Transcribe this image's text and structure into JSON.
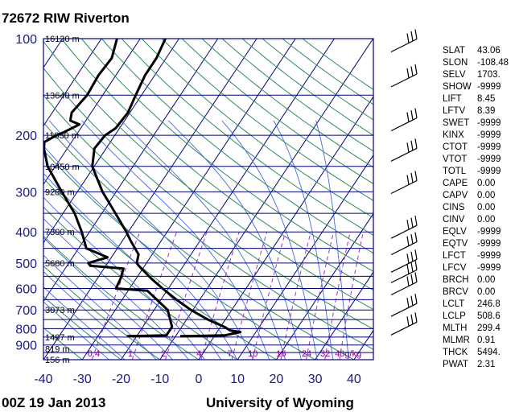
{
  "station": {
    "title": "72672 RIW Riverton"
  },
  "footer": {
    "time": "00Z 19 Jan 2013",
    "source": "University of Wyoming"
  },
  "chart_data": {
    "type": "skew-t",
    "y_scale": "log",
    "ylim": [
      1000,
      100
    ],
    "xlim": [
      -40,
      45
    ],
    "pressure_ticks": [
      100,
      200,
      300,
      400,
      500,
      600,
      700,
      800,
      900
    ],
    "temperature_ticks": [
      -40,
      -30,
      -20,
      -10,
      0,
      10,
      20,
      30,
      40
    ],
    "height_labels": [
      {
        "p": 100,
        "text": "16130 m"
      },
      {
        "p": 150,
        "text": "13640 m"
      },
      {
        "p": 200,
        "text": "11830 m"
      },
      {
        "p": 250,
        "text": "10450 m"
      },
      {
        "p": 300,
        "text": "9280 m"
      },
      {
        "p": 400,
        "text": "7300 m"
      },
      {
        "p": 500,
        "text": "5680 m"
      },
      {
        "p": 700,
        "text": "3073 m"
      },
      {
        "p": 850,
        "text": "1497 m"
      },
      {
        "p": 925,
        "text": "819 m"
      },
      {
        "p": 1000,
        "text": "156 m"
      }
    ],
    "mixing_ratio_labels": [
      "0.4",
      "1",
      "2",
      "4",
      "7",
      "10",
      "16",
      "24",
      "32",
      "40g/kg"
    ],
    "mixing_ratio_values": [
      0.4,
      1,
      2,
      4,
      7,
      10,
      16,
      24,
      32,
      40
    ],
    "temperature_profile": [
      {
        "p": 845,
        "t": -8.8
      },
      {
        "p": 840,
        "t": 2.5
      },
      {
        "p": 820,
        "t": 6.0
      },
      {
        "p": 810,
        "t": 3.0
      },
      {
        "p": 790,
        "t": 1.0
      },
      {
        "p": 750,
        "t": -4.5
      },
      {
        "p": 700,
        "t": -10.5
      },
      {
        "p": 650,
        "t": -16.0
      },
      {
        "p": 600,
        "t": -21.5
      },
      {
        "p": 560,
        "t": -26.0
      },
      {
        "p": 510,
        "t": -31.5
      },
      {
        "p": 500,
        "t": -32.5
      },
      {
        "p": 470,
        "t": -33.5
      },
      {
        "p": 430,
        "t": -37.5
      },
      {
        "p": 400,
        "t": -40.5
      },
      {
        "p": 350,
        "t": -46.5
      },
      {
        "p": 300,
        "t": -53.5
      },
      {
        "p": 250,
        "t": -60.5
      },
      {
        "p": 220,
        "t": -63.0
      },
      {
        "p": 200,
        "t": -62.5
      },
      {
        "p": 190,
        "t": -61.0
      },
      {
        "p": 170,
        "t": -60.5
      },
      {
        "p": 150,
        "t": -61.5
      },
      {
        "p": 130,
        "t": -62.5
      },
      {
        "p": 115,
        "t": -62.5
      },
      {
        "p": 100,
        "t": -63.5
      }
    ],
    "dewpoint_profile": [
      {
        "p": 845,
        "t": -22.5
      },
      {
        "p": 840,
        "t": -12.5
      },
      {
        "p": 790,
        "t": -12.5
      },
      {
        "p": 700,
        "t": -16.5
      },
      {
        "p": 610,
        "t": -25.0
      },
      {
        "p": 600,
        "t": -33.5
      },
      {
        "p": 560,
        "t": -34.0
      },
      {
        "p": 520,
        "t": -35.0
      },
      {
        "p": 510,
        "t": -44.0
      },
      {
        "p": 500,
        "t": -45.0
      },
      {
        "p": 480,
        "t": -41.0
      },
      {
        "p": 450,
        "t": -48.0
      },
      {
        "p": 400,
        "t": -52.0
      },
      {
        "p": 350,
        "t": -57.0
      },
      {
        "p": 300,
        "t": -64.0
      },
      {
        "p": 250,
        "t": -72.0
      },
      {
        "p": 220,
        "t": -76.0
      },
      {
        "p": 210,
        "t": -77.0
      },
      {
        "p": 200,
        "t": -75.0
      },
      {
        "p": 195,
        "t": -73.5
      },
      {
        "p": 185,
        "t": -71.0
      },
      {
        "p": 180,
        "t": -74.0
      },
      {
        "p": 170,
        "t": -75.0
      },
      {
        "p": 150,
        "t": -74.0
      },
      {
        "p": 130,
        "t": -74.5
      },
      {
        "p": 115,
        "t": -74.0
      },
      {
        "p": 100,
        "t": -76.0
      }
    ],
    "wind_barb_levels": [
      105,
      135,
      185,
      230,
      290,
      400,
      450,
      510,
      550,
      600,
      700,
      800
    ],
    "indices": [
      {
        "name": "SLAT",
        "value": "43.06"
      },
      {
        "name": "SLON",
        "value": "-108.48"
      },
      {
        "name": "SELV",
        "value": "1703."
      },
      {
        "name": "SHOW",
        "value": "-9999"
      },
      {
        "name": "LIFT",
        "value": "8.45"
      },
      {
        "name": "LFTV",
        "value": "8.39"
      },
      {
        "name": "SWET",
        "value": "-9999"
      },
      {
        "name": "KINX",
        "value": "-9999"
      },
      {
        "name": "CTOT",
        "value": "-9999"
      },
      {
        "name": "VTOT",
        "value": "-9999"
      },
      {
        "name": "TOTL",
        "value": "-9999"
      },
      {
        "name": "CAPE",
        "value": "0.00"
      },
      {
        "name": "CAPV",
        "value": "0.00"
      },
      {
        "name": "CINS",
        "value": "0.00"
      },
      {
        "name": "CINV",
        "value": "0.00"
      },
      {
        "name": "EQLV",
        "value": "-9999"
      },
      {
        "name": "EQTV",
        "value": "-9999"
      },
      {
        "name": "LFCT",
        "value": "-9999"
      },
      {
        "name": "LFCV",
        "value": "-9999"
      },
      {
        "name": "BRCH",
        "value": "0.00"
      },
      {
        "name": "BRCV",
        "value": "0.00"
      },
      {
        "name": "LCLT",
        "value": "246.8"
      },
      {
        "name": "LCLP",
        "value": "508.6"
      },
      {
        "name": "MLTH",
        "value": "299.4"
      },
      {
        "name": "MLMR",
        "value": "0.91"
      },
      {
        "name": "THCK",
        "value": "5494."
      },
      {
        "name": "PWAT",
        "value": "2.31"
      }
    ],
    "colors": {
      "isobar": "#000080",
      "isotherm": "#000080",
      "dry_adiabat": "#2e8b57",
      "moist_adiabat": "#4169e1",
      "mixing_ratio": "#9932cc",
      "profile": "#000000",
      "axis_text": "#1a1a8c"
    }
  }
}
